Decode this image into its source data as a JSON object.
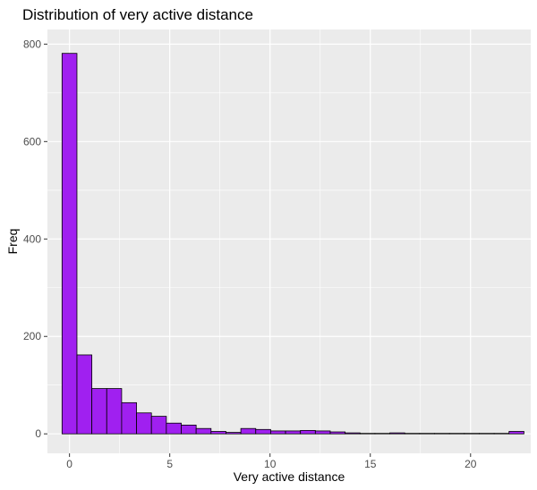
{
  "chart_data": {
    "type": "bar",
    "title": "Distribution of very active distance",
    "xlabel": "Very active distance",
    "ylabel": "Freq",
    "xlim": [
      -1.1,
      23.0
    ],
    "ylim": [
      -40,
      830
    ],
    "x_ticks": [
      0,
      5,
      10,
      15,
      20
    ],
    "y_ticks": [
      0,
      200,
      400,
      600,
      800
    ],
    "bin_width": 0.743,
    "bin_centers": [
      0,
      0.743,
      1.486,
      2.229,
      2.972,
      3.715,
      4.458,
      5.201,
      5.944,
      6.687,
      7.43,
      8.173,
      8.916,
      9.659,
      10.402,
      11.145,
      11.888,
      12.631,
      13.374,
      14.117,
      14.86,
      15.603,
      16.346,
      17.089,
      17.832,
      18.575,
      19.318,
      20.061,
      20.804,
      21.547,
      22.29
    ],
    "values": [
      781,
      162,
      93,
      93,
      64,
      43,
      36,
      22,
      18,
      11,
      5,
      3,
      11,
      9,
      6,
      6,
      7,
      6,
      4,
      2,
      1,
      1,
      2,
      1,
      1,
      1,
      1,
      1,
      1,
      1,
      5
    ],
    "fill_color": "#A020F0",
    "outline_color": "#000000",
    "panel_background": "#EBEBEB",
    "grid_color": "#FFFFFF",
    "grid": true,
    "legend": "none"
  }
}
